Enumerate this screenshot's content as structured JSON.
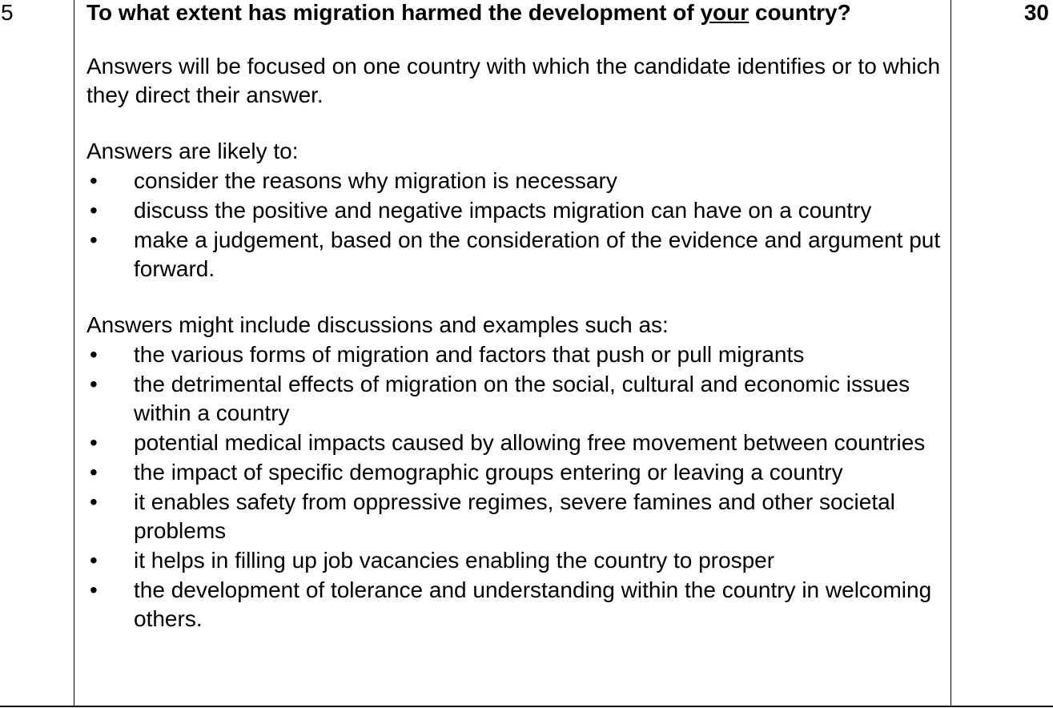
{
  "question_number": "5",
  "marks": "30",
  "question": {
    "before": "To what extent has migration harmed the development of ",
    "underlined": "your",
    "after": " country?"
  },
  "intro": "Answers will be focused on one country with which the candidate identifies or to which they direct their answer.",
  "likely": {
    "lead": "Answers are likely to:",
    "items": [
      "consider the reasons why migration is necessary",
      "discuss the positive and negative impacts migration can have on a country",
      "make a judgement, based on the consideration of the evidence and argument put forward."
    ]
  },
  "might_include": {
    "lead": "Answers might include discussions and examples such as:",
    "items": [
      "the various forms of migration and factors that push or pull migrants",
      "the detrimental effects of migration on the social, cultural and economic issues within a country",
      "potential medical impacts caused by allowing free movement between countries",
      "the impact of specific demographic groups entering or leaving a country",
      "it enables safety from oppressive regimes, severe famines and other societal problems",
      "it helps in filling up job vacancies enabling the country to prosper",
      "the development of tolerance and understanding within the country in welcoming others."
    ]
  }
}
